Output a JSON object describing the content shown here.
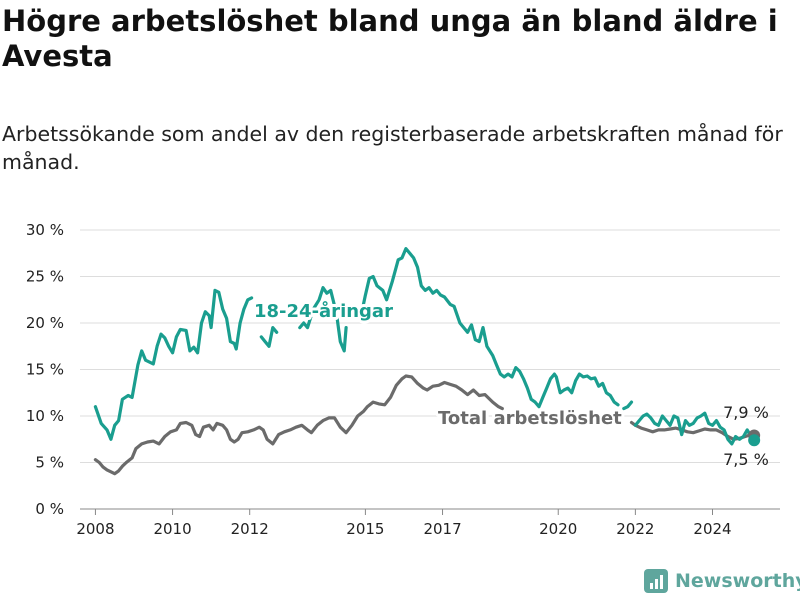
{
  "title": "Högre arbetslöshet bland unga än bland äldre i Avesta",
  "subtitle": "Arbetssökande som andel av den registerbaserade arbetskraften månad för månad.",
  "brand": {
    "name": "Newsworthy",
    "color": "#5fa69d",
    "icon": "bar-chart-logo-icon"
  },
  "chart_data": {
    "type": "line",
    "ylim": [
      0,
      30
    ],
    "xlim": [
      2007.6,
      2025.75
    ],
    "yticks": [
      {
        "value": 0,
        "label": "0 %"
      },
      {
        "value": 5,
        "label": "5 %"
      },
      {
        "value": 10,
        "label": "10 %"
      },
      {
        "value": 15,
        "label": "15 %"
      },
      {
        "value": 20,
        "label": "20 %"
      },
      {
        "value": 25,
        "label": "25 %"
      },
      {
        "value": 30,
        "label": "30 %"
      }
    ],
    "xticks": [
      {
        "value": 2008,
        "label": "2008"
      },
      {
        "value": 2010,
        "label": "2010"
      },
      {
        "value": 2012,
        "label": "2012"
      },
      {
        "value": 2015,
        "label": "2015"
      },
      {
        "value": 2017,
        "label": "2017"
      },
      {
        "value": 2020,
        "label": "2020"
      },
      {
        "value": 2022,
        "label": "2022"
      },
      {
        "value": 2024,
        "label": "2024"
      }
    ],
    "grid": true,
    "series": [
      {
        "name": "18-24-åringar",
        "color": "#1a9e8f",
        "end_label": "7,5 %",
        "end_value": 7.5,
        "points": [
          [
            2008.0,
            11.0
          ],
          [
            2008.15,
            9.2
          ],
          [
            2008.3,
            8.5
          ],
          [
            2008.4,
            7.5
          ],
          [
            2008.5,
            9.0
          ],
          [
            2008.6,
            9.5
          ],
          [
            2008.7,
            11.8
          ],
          [
            2008.85,
            12.2
          ],
          [
            2008.95,
            12.0
          ],
          [
            2009.1,
            15.5
          ],
          [
            2009.2,
            17.0
          ],
          [
            2009.3,
            16.0
          ],
          [
            2009.5,
            15.6
          ],
          [
            2009.6,
            17.5
          ],
          [
            2009.7,
            18.8
          ],
          [
            2009.8,
            18.4
          ],
          [
            2009.9,
            17.5
          ],
          [
            2010.0,
            16.8
          ],
          [
            2010.1,
            18.5
          ],
          [
            2010.2,
            19.3
          ],
          [
            2010.35,
            19.2
          ],
          [
            2010.45,
            17.0
          ],
          [
            2010.55,
            17.4
          ],
          [
            2010.65,
            16.8
          ],
          [
            2010.75,
            20.0
          ],
          [
            2010.85,
            21.2
          ],
          [
            2010.95,
            20.8
          ],
          [
            2011.0,
            19.5
          ],
          [
            2011.1,
            23.5
          ],
          [
            2011.2,
            23.3
          ],
          [
            2011.3,
            21.5
          ],
          [
            2011.4,
            20.5
          ],
          [
            2011.5,
            18.0
          ],
          [
            2011.6,
            17.8
          ],
          [
            2011.65,
            17.2
          ],
          [
            2011.75,
            20.0
          ],
          [
            2011.85,
            21.5
          ],
          [
            2011.95,
            22.5
          ],
          [
            2012.05,
            22.7
          ]
        ],
        "points_b": [
          [
            2012.3,
            18.5
          ],
          [
            2012.4,
            18.0
          ],
          [
            2012.5,
            17.5
          ],
          [
            2012.6,
            19.5
          ],
          [
            2012.7,
            19.0
          ]
        ],
        "points_c": [
          [
            2013.3,
            19.5
          ],
          [
            2013.4,
            20.0
          ],
          [
            2013.5,
            19.5
          ],
          [
            2013.65,
            21.5
          ],
          [
            2013.8,
            22.5
          ],
          [
            2013.9,
            23.8
          ],
          [
            2014.0,
            23.2
          ],
          [
            2014.1,
            23.5
          ],
          [
            2014.25,
            21.0
          ],
          [
            2014.35,
            18.0
          ],
          [
            2014.45,
            17.0
          ],
          [
            2014.5,
            19.5
          ]
        ],
        "points_d": [
          [
            2014.9,
            21.0
          ],
          [
            2015.0,
            23.0
          ],
          [
            2015.1,
            24.8
          ],
          [
            2015.2,
            25.0
          ],
          [
            2015.3,
            24.0
          ],
          [
            2015.45,
            23.5
          ],
          [
            2015.55,
            22.5
          ],
          [
            2015.7,
            24.5
          ],
          [
            2015.85,
            26.8
          ],
          [
            2015.95,
            27.0
          ],
          [
            2016.05,
            28.0
          ],
          [
            2016.15,
            27.5
          ],
          [
            2016.25,
            27.0
          ],
          [
            2016.35,
            26.0
          ],
          [
            2016.45,
            24.0
          ],
          [
            2016.55,
            23.5
          ],
          [
            2016.65,
            23.8
          ],
          [
            2016.75,
            23.2
          ],
          [
            2016.85,
            23.5
          ],
          [
            2016.95,
            23.0
          ],
          [
            2017.05,
            22.8
          ],
          [
            2017.2,
            22.0
          ],
          [
            2017.3,
            21.8
          ],
          [
            2017.45,
            20.0
          ],
          [
            2017.55,
            19.5
          ],
          [
            2017.65,
            19.0
          ],
          [
            2017.75,
            19.8
          ],
          [
            2017.85,
            18.2
          ],
          [
            2017.95,
            18.0
          ],
          [
            2018.05,
            19.5
          ],
          [
            2018.15,
            17.5
          ],
          [
            2018.3,
            16.5
          ],
          [
            2018.4,
            15.5
          ],
          [
            2018.5,
            14.5
          ],
          [
            2018.6,
            14.2
          ],
          [
            2018.7,
            14.5
          ],
          [
            2018.8,
            14.2
          ],
          [
            2018.9,
            15.2
          ],
          [
            2019.0,
            14.8
          ],
          [
            2019.1,
            14.0
          ],
          [
            2019.2,
            13.0
          ],
          [
            2019.3,
            11.8
          ],
          [
            2019.4,
            11.5
          ],
          [
            2019.5,
            11.0
          ],
          [
            2019.6,
            12.0
          ],
          [
            2019.7,
            13.0
          ],
          [
            2019.8,
            14.0
          ],
          [
            2019.9,
            14.5
          ],
          [
            2019.95,
            14.2
          ],
          [
            2020.05,
            12.5
          ],
          [
            2020.15,
            12.8
          ],
          [
            2020.25,
            13.0
          ],
          [
            2020.35,
            12.5
          ],
          [
            2020.45,
            13.8
          ],
          [
            2020.55,
            14.5
          ],
          [
            2020.65,
            14.2
          ],
          [
            2020.75,
            14.3
          ],
          [
            2020.85,
            14.0
          ],
          [
            2020.95,
            14.1
          ],
          [
            2021.05,
            13.2
          ],
          [
            2021.15,
            13.5
          ],
          [
            2021.25,
            12.5
          ],
          [
            2021.35,
            12.2
          ],
          [
            2021.45,
            11.5
          ],
          [
            2021.55,
            11.2
          ]
        ],
        "points_e": [
          [
            2021.7,
            10.8
          ],
          [
            2021.8,
            11.0
          ],
          [
            2021.9,
            11.5
          ]
        ],
        "points_f": [
          [
            2022.0,
            9.0
          ],
          [
            2022.1,
            9.5
          ],
          [
            2022.2,
            10.0
          ],
          [
            2022.3,
            10.2
          ],
          [
            2022.4,
            9.8
          ],
          [
            2022.5,
            9.2
          ],
          [
            2022.6,
            9.0
          ],
          [
            2022.7,
            10.0
          ],
          [
            2022.8,
            9.5
          ],
          [
            2022.9,
            9.0
          ],
          [
            2023.0,
            10.0
          ],
          [
            2023.1,
            9.8
          ],
          [
            2023.2,
            8.0
          ],
          [
            2023.3,
            9.5
          ],
          [
            2023.4,
            9.0
          ],
          [
            2023.5,
            9.2
          ],
          [
            2023.6,
            9.8
          ],
          [
            2023.7,
            10.0
          ],
          [
            2023.8,
            10.3
          ],
          [
            2023.9,
            9.2
          ],
          [
            2024.0,
            9.0
          ],
          [
            2024.1,
            9.5
          ],
          [
            2024.2,
            8.8
          ],
          [
            2024.3,
            8.5
          ],
          [
            2024.4,
            7.5
          ],
          [
            2024.5,
            7.0
          ],
          [
            2024.6,
            7.8
          ],
          [
            2024.7,
            7.5
          ],
          [
            2024.8,
            7.8
          ],
          [
            2024.9,
            8.5
          ],
          [
            2025.0,
            7.8
          ],
          [
            2025.08,
            7.5
          ]
        ]
      },
      {
        "name": "Total arbetslöshet",
        "color": "#6b6b6b",
        "end_label": "7,9 %",
        "end_value": 7.9,
        "points": [
          [
            2008.0,
            5.3
          ],
          [
            2008.1,
            5.0
          ],
          [
            2008.2,
            4.5
          ],
          [
            2008.3,
            4.2
          ],
          [
            2008.4,
            4.0
          ],
          [
            2008.5,
            3.8
          ],
          [
            2008.6,
            4.1
          ],
          [
            2008.7,
            4.6
          ],
          [
            2008.8,
            5.0
          ],
          [
            2008.95,
            5.5
          ],
          [
            2009.05,
            6.5
          ],
          [
            2009.2,
            7.0
          ],
          [
            2009.35,
            7.2
          ],
          [
            2009.5,
            7.3
          ],
          [
            2009.65,
            7.0
          ],
          [
            2009.8,
            7.8
          ],
          [
            2009.95,
            8.3
          ],
          [
            2010.1,
            8.5
          ],
          [
            2010.2,
            9.2
          ],
          [
            2010.35,
            9.3
          ],
          [
            2010.5,
            9.0
          ],
          [
            2010.6,
            8.0
          ],
          [
            2010.7,
            7.8
          ],
          [
            2010.8,
            8.8
          ],
          [
            2010.95,
            9.0
          ],
          [
            2011.05,
            8.5
          ],
          [
            2011.15,
            9.2
          ],
          [
            2011.3,
            9.0
          ],
          [
            2011.4,
            8.5
          ],
          [
            2011.5,
            7.5
          ],
          [
            2011.6,
            7.2
          ],
          [
            2011.7,
            7.5
          ],
          [
            2011.8,
            8.2
          ],
          [
            2011.95,
            8.3
          ],
          [
            2012.1,
            8.5
          ],
          [
            2012.25,
            8.8
          ],
          [
            2012.35,
            8.5
          ],
          [
            2012.45,
            7.5
          ],
          [
            2012.6,
            7.0
          ],
          [
            2012.75,
            8.0
          ],
          [
            2012.9,
            8.3
          ],
          [
            2013.05,
            8.5
          ],
          [
            2013.2,
            8.8
          ],
          [
            2013.35,
            9.0
          ],
          [
            2013.5,
            8.5
          ],
          [
            2013.6,
            8.2
          ],
          [
            2013.75,
            9.0
          ],
          [
            2013.9,
            9.5
          ],
          [
            2014.05,
            9.8
          ],
          [
            2014.2,
            9.8
          ],
          [
            2014.35,
            8.8
          ],
          [
            2014.5,
            8.2
          ],
          [
            2014.65,
            9.0
          ],
          [
            2014.8,
            10.0
          ],
          [
            2014.95,
            10.5
          ],
          [
            2015.05,
            11.0
          ],
          [
            2015.2,
            11.5
          ],
          [
            2015.35,
            11.3
          ],
          [
            2015.5,
            11.2
          ],
          [
            2015.65,
            12.0
          ],
          [
            2015.8,
            13.3
          ],
          [
            2015.95,
            14.0
          ],
          [
            2016.05,
            14.3
          ],
          [
            2016.2,
            14.2
          ],
          [
            2016.35,
            13.5
          ],
          [
            2016.5,
            13.0
          ],
          [
            2016.6,
            12.8
          ],
          [
            2016.75,
            13.2
          ],
          [
            2016.9,
            13.3
          ],
          [
            2017.05,
            13.6
          ],
          [
            2017.2,
            13.4
          ],
          [
            2017.35,
            13.2
          ],
          [
            2017.5,
            12.8
          ],
          [
            2017.65,
            12.3
          ],
          [
            2017.8,
            12.8
          ],
          [
            2017.95,
            12.2
          ],
          [
            2018.1,
            12.3
          ],
          [
            2018.3,
            11.5
          ],
          [
            2018.45,
            11.0
          ],
          [
            2018.55,
            10.8
          ]
        ],
        "points_b": [
          [
            2021.9,
            9.3
          ],
          [
            2022.0,
            9.0
          ],
          [
            2022.15,
            8.7
          ],
          [
            2022.3,
            8.5
          ],
          [
            2022.45,
            8.3
          ],
          [
            2022.6,
            8.5
          ],
          [
            2022.75,
            8.5
          ],
          [
            2022.9,
            8.6
          ],
          [
            2023.05,
            8.7
          ],
          [
            2023.2,
            8.5
          ],
          [
            2023.35,
            8.3
          ],
          [
            2023.5,
            8.2
          ],
          [
            2023.65,
            8.4
          ],
          [
            2023.8,
            8.6
          ],
          [
            2023.95,
            8.5
          ],
          [
            2024.1,
            8.5
          ],
          [
            2024.25,
            8.2
          ],
          [
            2024.4,
            7.8
          ],
          [
            2024.55,
            7.5
          ],
          [
            2024.7,
            7.6
          ],
          [
            2024.85,
            7.8
          ],
          [
            2025.0,
            8.0
          ],
          [
            2025.08,
            7.9
          ]
        ]
      }
    ]
  }
}
